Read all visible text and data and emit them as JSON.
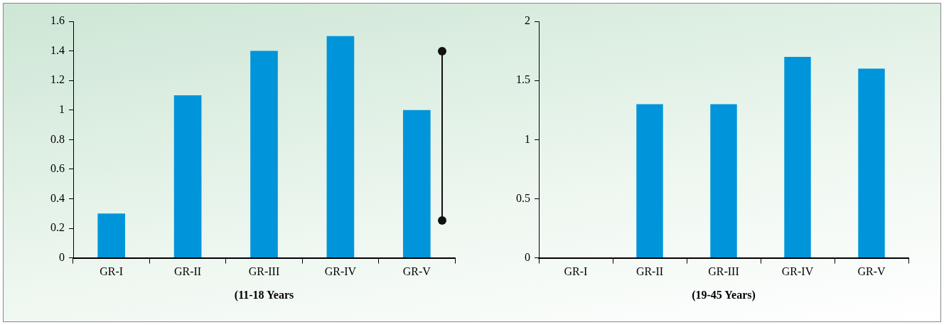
{
  "chart_data": [
    {
      "type": "bar",
      "xlabel": "(11-18 Years",
      "categories": [
        "GR-I",
        "GR-II",
        "GR-III",
        "GR-IV",
        "GR-V"
      ],
      "values": [
        0.3,
        1.1,
        1.4,
        1.5,
        1.0
      ],
      "color": "#0095da",
      "ylim": [
        0,
        1.6
      ],
      "yticks": [
        0,
        0.2,
        0.4,
        0.6,
        0.8,
        1,
        1.2,
        1.4,
        1.6
      ],
      "grid": false,
      "legend": false
    },
    {
      "type": "bar",
      "xlabel": "(19-45 Years)",
      "categories": [
        "GR-I",
        "GR-II",
        "GR-III",
        "GR-IV",
        "GR-V"
      ],
      "values": [
        0,
        1.3,
        1.3,
        1.7,
        1.6
      ],
      "color": "#0095da",
      "ylim": [
        0,
        2
      ],
      "yticks": [
        0,
        0.5,
        1,
        1.5,
        2
      ],
      "grid": false,
      "legend": false
    }
  ]
}
